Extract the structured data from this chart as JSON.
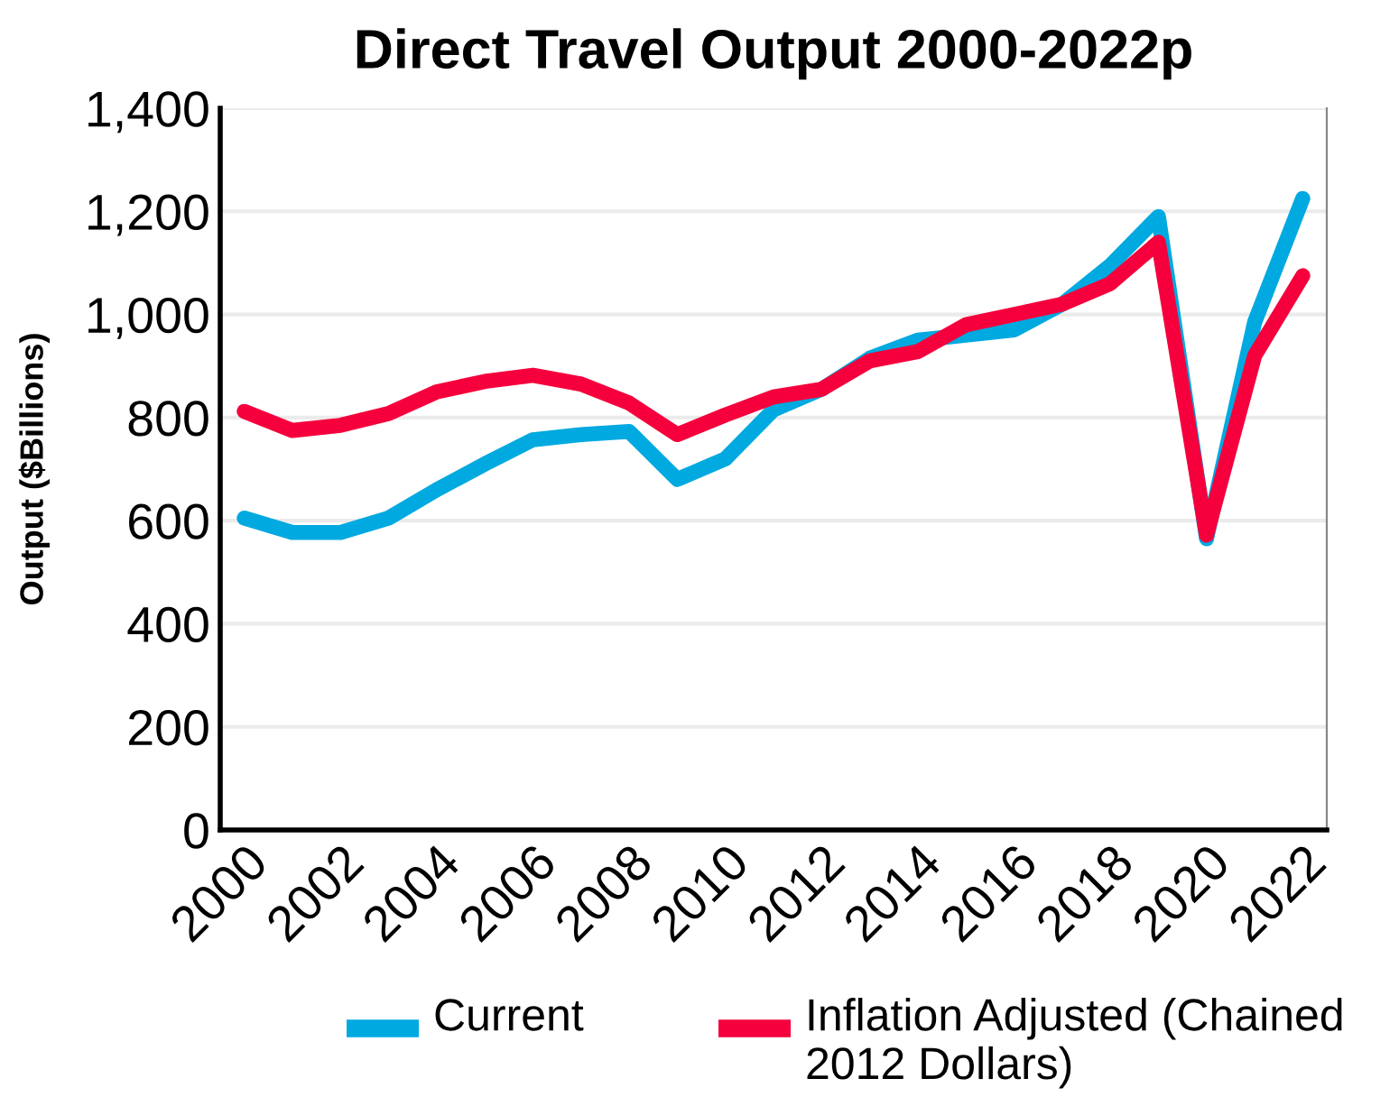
{
  "chart_data": {
    "type": "line",
    "title": "Direct Travel Output 2000-2022p",
    "ylabel": "Output ($Billions)",
    "x": [
      2000,
      2001,
      2002,
      2003,
      2004,
      2005,
      2006,
      2007,
      2008,
      2009,
      2010,
      2011,
      2012,
      2013,
      2014,
      2015,
      2016,
      2017,
      2018,
      2019,
      2020,
      2021,
      2022
    ],
    "series": [
      {
        "name": "Current",
        "color": "#00a9e0",
        "values": [
          605,
          577,
          577,
          605,
          660,
          710,
          757,
          767,
          773,
          680,
          720,
          815,
          855,
          915,
          950,
          960,
          970,
          1020,
          1095,
          1190,
          565,
          985,
          1225
        ]
      },
      {
        "name": "Inflation Adjusted (Chained 2012 Dollars)",
        "color": "#f5003c",
        "values": [
          812,
          775,
          785,
          808,
          850,
          870,
          882,
          865,
          828,
          767,
          805,
          840,
          855,
          910,
          928,
          980,
          1000,
          1020,
          1060,
          1140,
          572,
          920,
          1075
        ]
      }
    ],
    "xlim": [
      1999.5,
      2022.5
    ],
    "xticks": [
      2000,
      2002,
      2004,
      2006,
      2008,
      2010,
      2012,
      2014,
      2016,
      2018,
      2020,
      2022
    ],
    "ylim": [
      0,
      1400
    ],
    "yticks": [
      0,
      200,
      400,
      600,
      800,
      {
        "value": 1000,
        "label": "1,000"
      },
      {
        "value": 1200,
        "label": "1,200"
      },
      {
        "value": 1400,
        "label": "1,400"
      }
    ],
    "grid": "y",
    "legend": "bottom",
    "marker": "none",
    "line_style": "solid"
  }
}
